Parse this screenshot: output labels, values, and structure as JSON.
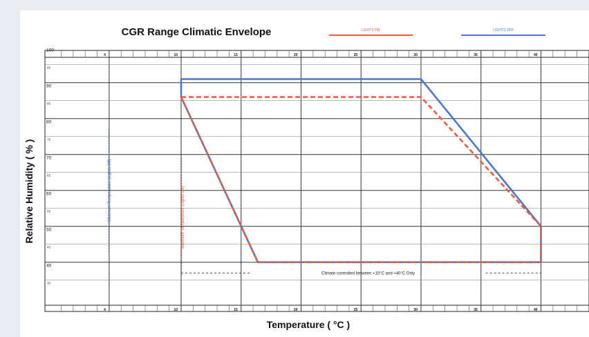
{
  "chart_data": {
    "type": "line",
    "title": "CGR Range Climatic Envelope",
    "xlabel": "Temperature ( °C )",
    "ylabel": "Relative Humidity ( % )",
    "xlim": [
      0,
      43
    ],
    "ylim": [
      32,
      100
    ],
    "x_major_ticks": [
      {
        "value": 4,
        "label": "4"
      },
      {
        "value": 10,
        "label": "10"
      },
      {
        "value": 15,
        "label": "15"
      },
      {
        "value": 20,
        "label": "20"
      },
      {
        "value": 25,
        "label": "25"
      },
      {
        "value": 30,
        "label": "30"
      },
      {
        "value": 35,
        "label": "35"
      },
      {
        "value": 40,
        "label": "40"
      }
    ],
    "y_major_ticks": [
      100,
      90,
      80,
      70,
      60,
      50,
      40
    ],
    "y_minor_ticks": [
      95,
      85,
      75,
      65,
      55,
      45,
      35
    ],
    "grid": true,
    "legend_position": "top-right",
    "series": [
      {
        "name": "LIGHTS ON",
        "color": "#ee5a3c",
        "points": [
          [
            10,
            86
          ],
          [
            30,
            86
          ],
          [
            40,
            50
          ],
          [
            40,
            40
          ],
          [
            16.4,
            40
          ],
          [
            10,
            86
          ]
        ]
      },
      {
        "name": "LIGHTS OFF",
        "color": "#4a78d0",
        "points": [
          [
            10,
            91
          ],
          [
            30,
            91
          ],
          [
            40,
            50
          ],
          [
            40,
            40
          ],
          [
            16.4,
            40
          ],
          [
            10,
            86
          ],
          [
            10,
            91
          ]
        ]
      }
    ],
    "annotations": {
      "min_temp_lights_off": {
        "text": "Minimum Temperature (Lights Off)",
        "x": 4,
        "color": "#4a78d0"
      },
      "min_temp_lights_on": {
        "text": "Minimum Temperature (Lights On)",
        "x": 10,
        "color": "#ee5a3c"
      },
      "climate_note": {
        "text": "Climate controlled between +10°C and +40°C Only",
        "y": 37
      }
    }
  }
}
